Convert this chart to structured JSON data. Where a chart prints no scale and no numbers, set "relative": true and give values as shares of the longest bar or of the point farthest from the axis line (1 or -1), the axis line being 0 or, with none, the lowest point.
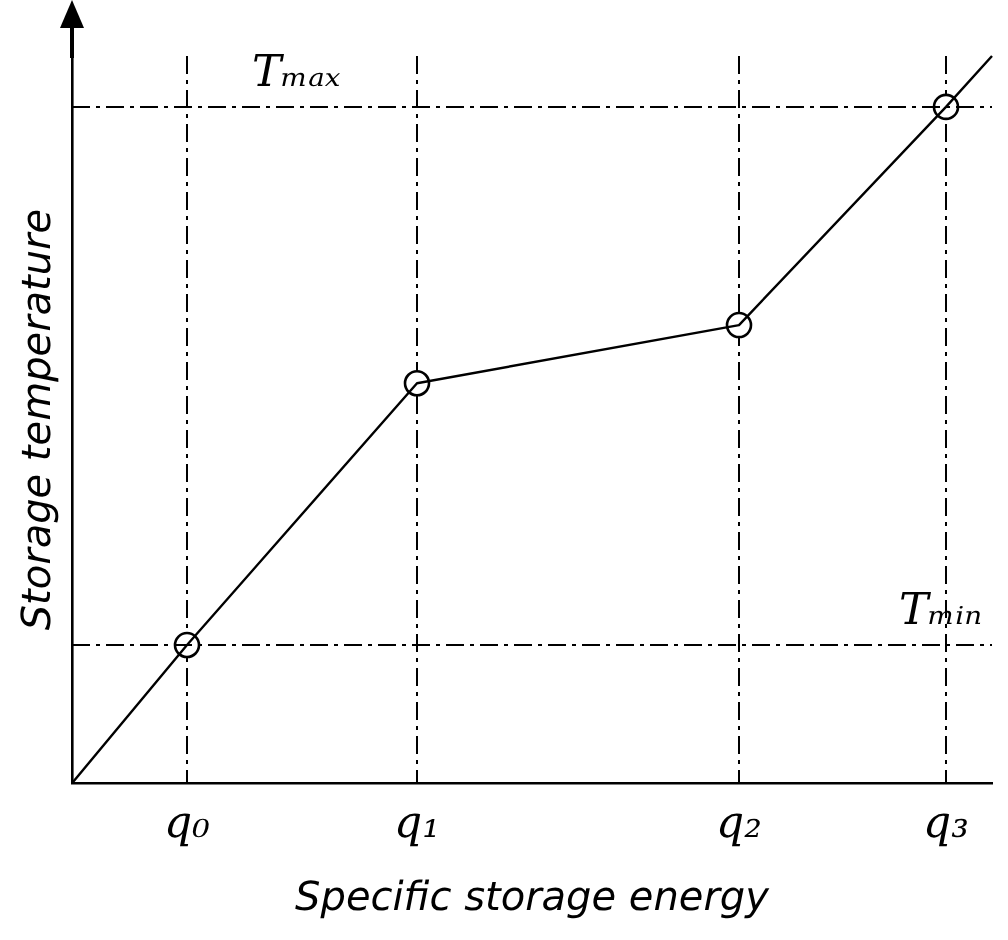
{
  "chart_data": {
    "type": "line",
    "relative": true,
    "xlabel": "Specific storage energy",
    "ylabel": "Storage temperature",
    "categories": [
      null,
      null,
      null,
      null,
      null,
      "q₀",
      null,
      null,
      null,
      null,
      null,
      null,
      null,
      null,
      null,
      "q₁",
      null,
      null,
      null,
      null,
      null,
      null,
      null,
      null,
      null,
      null,
      null,
      null,
      null,
      "q₂",
      null,
      null,
      null,
      null,
      null,
      null,
      null,
      null,
      "q₃",
      null,
      null
    ],
    "grid": "x",
    "legend": false,
    "series": [
      {
        "color": "#000000",
        "marker": "none",
        "values": [
          0,
          null,
          null,
          null,
          null,
          0.19,
          null,
          null,
          null,
          null,
          null,
          null,
          null,
          null,
          null,
          0.55,
          null,
          null,
          null,
          null,
          null,
          null,
          null,
          null,
          null,
          null,
          null,
          null,
          null,
          0.63,
          null,
          null,
          null,
          null,
          null,
          null,
          null,
          null,
          0.93,
          null,
          1
        ]
      },
      {
        "type": "scatter",
        "color": "#000000",
        "marker": "circle",
        "x": [
          "q₀",
          "q₁",
          "q₂",
          "q₃"
        ],
        "values": [
          0.19,
          0.55,
          0.63,
          0.93
        ]
      }
    ],
    "ref_lines": [
      {
        "axis": "y",
        "value": 0.93,
        "label": "Tₘₐₓ",
        "line_style": "dashed",
        "color": "#000000"
      },
      {
        "axis": "y",
        "value": 0.19,
        "label": "Tₘᵢₙ",
        "line_style": "dashed",
        "color": "#000000"
      }
    ]
  }
}
